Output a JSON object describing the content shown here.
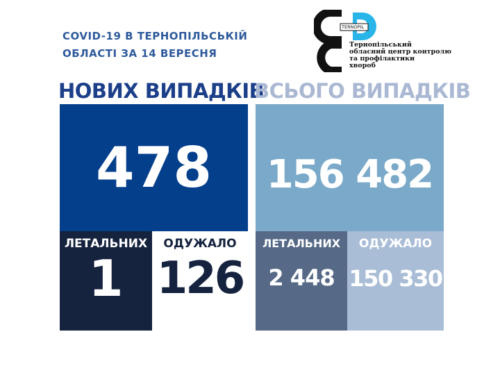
{
  "title": {
    "line1": "COVID-19 В ТЕРНОПІЛЬСЬКІЙ",
    "line2": "ОБЛАСТІ ЗА 14 ВЕРЕСНЯ"
  },
  "logo": {
    "badge": "TERNOPIL",
    "lines": [
      "Тернопільський",
      "обласний центр контролю",
      "та профілактики",
      "хвороб"
    ]
  },
  "new_cases": {
    "header": "НОВИХ ВИПАДКІВ",
    "value": "478",
    "deaths_label": "ЛЕТАЛЬНИХ",
    "deaths": "1",
    "recovered_label": "ОДУЖАЛО",
    "recovered": "126"
  },
  "total_cases": {
    "header": "ВСЬОГО ВИПАДКІВ",
    "value": "156 482",
    "deaths_label": "ЛЕТАЛЬНИХ",
    "deaths": "2 448",
    "recovered_label": "ОДУЖАЛО",
    "recovered": "150 330"
  },
  "colors": {
    "new_main": "#033f8b",
    "new_deaths": "#15233f",
    "total_main": "#7aa9c9",
    "total_deaths": "#566a87",
    "total_recovered": "#aabdd6",
    "accent_cyan": "#29b5e8"
  }
}
